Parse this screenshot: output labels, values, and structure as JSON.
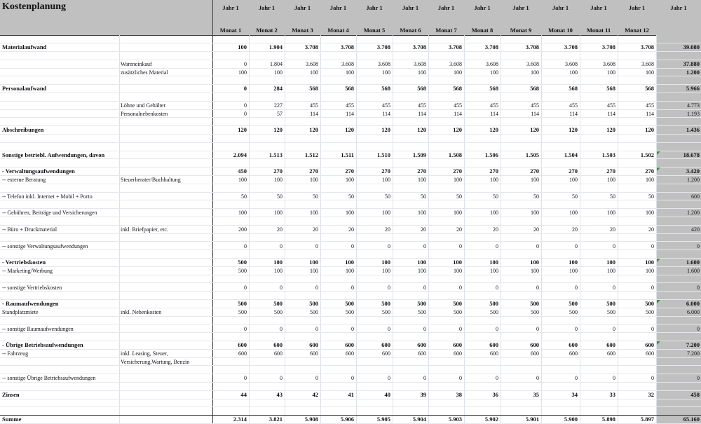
{
  "title": "Kostenplanung",
  "columns": [
    {
      "year": "Jahr 1",
      "month": "Monat 1"
    },
    {
      "year": "Jahr 1",
      "month": "Monat 2"
    },
    {
      "year": "Jahr 1",
      "month": "Monat 3"
    },
    {
      "year": "Jahr 1",
      "month": "Monat 4"
    },
    {
      "year": "Jahr 1",
      "month": "Monat 5"
    },
    {
      "year": "Jahr 1",
      "month": "Monat 6"
    },
    {
      "year": "Jahr 1",
      "month": "Monat 7"
    },
    {
      "year": "Jahr 1",
      "month": "Monat 8"
    },
    {
      "year": "Jahr 1",
      "month": "Monat 9"
    },
    {
      "year": "Jahr 1",
      "month": "Monat 10"
    },
    {
      "year": "Jahr 1",
      "month": "Monat 11"
    },
    {
      "year": "Jahr 1",
      "month": "Monat 12"
    }
  ],
  "total_header": {
    "year": "Jahr 1",
    "month": ""
  },
  "colors": {
    "header_bg": "#c0c0c0",
    "total_bg": "#c0c0c0",
    "comment_flag": "#2a9a2a"
  },
  "rows": [
    {},
    {
      "bold": true,
      "label": "Materialaufwand",
      "values": [
        "100",
        "1.904",
        "3.708",
        "3.708",
        "3.708",
        "3.708",
        "3.708",
        "3.708",
        "3.708",
        "3.708",
        "3.708",
        "3.708"
      ],
      "total": "39.080",
      "total_bold": true
    },
    {},
    {
      "note": "Wareneinkauf",
      "values": [
        "0",
        "1.804",
        "3.608",
        "3.608",
        "3.608",
        "3.608",
        "3.608",
        "3.608",
        "3.608",
        "3.608",
        "3.608",
        "3.608"
      ],
      "total": "37.880",
      "total_bold": true
    },
    {
      "note": "zusätzliches Material",
      "values": [
        "100",
        "100",
        "100",
        "100",
        "100",
        "100",
        "100",
        "100",
        "100",
        "100",
        "100",
        "100"
      ],
      "total": "1.200",
      "total_bold": true
    },
    {},
    {
      "bold": true,
      "label": "Personalaufwand",
      "values": [
        "0",
        "284",
        "568",
        "568",
        "568",
        "568",
        "568",
        "568",
        "568",
        "568",
        "568",
        "568"
      ],
      "total": "5.966",
      "total_bold": true
    },
    {},
    {
      "note": "Löhne und Gehälter",
      "values": [
        "0",
        "227",
        "455",
        "455",
        "455",
        "455",
        "455",
        "455",
        "455",
        "455",
        "455",
        "455"
      ],
      "total": "4.773"
    },
    {
      "note": "Personalnebenkosten",
      "values": [
        "0",
        "57",
        "114",
        "114",
        "114",
        "114",
        "114",
        "114",
        "114",
        "114",
        "114",
        "114"
      ],
      "total": "1.193"
    },
    {},
    {
      "bold": true,
      "label": "Abschreibungen",
      "values": [
        "120",
        "120",
        "120",
        "120",
        "120",
        "120",
        "120",
        "120",
        "120",
        "120",
        "120",
        "120"
      ],
      "total": "1.436",
      "total_bold": true
    },
    {},
    {},
    {
      "bold": true,
      "label": "Sonstige betriebl. Aufwendungen, davon",
      "values": [
        "2.094",
        "1.513",
        "1.512",
        "1.511",
        "1.510",
        "1.509",
        "1.508",
        "1.506",
        "1.505",
        "1.504",
        "1.503",
        "1.502"
      ],
      "total": "18.678",
      "total_bold": true,
      "flag": true
    },
    {},
    {
      "bold": true,
      "label": "- Verwaltungsaufwendungen",
      "values": [
        "450",
        "270",
        "270",
        "270",
        "270",
        "270",
        "270",
        "270",
        "270",
        "270",
        "270",
        "270"
      ],
      "total": "3.420",
      "total_bold": true,
      "flag": true
    },
    {
      "label": "-- externe Beratung",
      "note": "Steuerberater/Buchhaltung",
      "values": [
        "100",
        "100",
        "100",
        "100",
        "100",
        "100",
        "100",
        "100",
        "100",
        "100",
        "100",
        "100"
      ],
      "total": "1.200"
    },
    {},
    {
      "label": "-- Telefon inkl. Internet + Mobil + Porto",
      "values": [
        "50",
        "50",
        "50",
        "50",
        "50",
        "50",
        "50",
        "50",
        "50",
        "50",
        "50",
        "50"
      ],
      "total": "600"
    },
    {},
    {
      "label": "-- Gebühren, Beiträge und Versicherungen",
      "values": [
        "100",
        "100",
        "100",
        "100",
        "100",
        "100",
        "100",
        "100",
        "100",
        "100",
        "100",
        "100"
      ],
      "total": "1.200"
    },
    {},
    {
      "label": "-- Büro + Druckmaterial",
      "note": "inkl. Briefpapier, etc.",
      "values": [
        "200",
        "20",
        "20",
        "20",
        "20",
        "20",
        "20",
        "20",
        "20",
        "20",
        "20",
        "20"
      ],
      "total": "420"
    },
    {},
    {
      "label": "-- sonstige Verwaltungsaufwendungen",
      "values": [
        "0",
        "0",
        "0",
        "0",
        "0",
        "0",
        "0",
        "0",
        "0",
        "0",
        "0",
        "0"
      ],
      "total": "0"
    },
    {},
    {
      "bold": true,
      "label": "- Vertriebskosten",
      "values": [
        "500",
        "100",
        "100",
        "100",
        "100",
        "100",
        "100",
        "100",
        "100",
        "100",
        "100",
        "100"
      ],
      "total": "1.600",
      "total_bold": true,
      "flag": true
    },
    {
      "label": "-- Marketing/Werbung",
      "values": [
        "500",
        "100",
        "100",
        "100",
        "100",
        "100",
        "100",
        "100",
        "100",
        "100",
        "100",
        "100"
      ],
      "total": "1.600"
    },
    {},
    {
      "label": "-- sonstige Vertriebskosten",
      "values": [
        "0",
        "0",
        "0",
        "0",
        "0",
        "0",
        "0",
        "0",
        "0",
        "0",
        "0",
        "0"
      ],
      "total": "0"
    },
    {},
    {
      "bold": true,
      "label": "- Raumaufwendungen",
      "values": [
        "500",
        "500",
        "500",
        "500",
        "500",
        "500",
        "500",
        "500",
        "500",
        "500",
        "500",
        "500"
      ],
      "total": "6.000",
      "total_bold": true,
      "flag": true
    },
    {
      "label": "Standplatzmiete",
      "note": "inkl. Nebenkosten",
      "values": [
        "500",
        "500",
        "500",
        "500",
        "500",
        "500",
        "500",
        "500",
        "500",
        "500",
        "500",
        "500"
      ],
      "total": "6.000"
    },
    {},
    {
      "label": "-- sonstige Raumaufwendungen",
      "values": [
        "0",
        "0",
        "0",
        "0",
        "0",
        "0",
        "0",
        "0",
        "0",
        "0",
        "0",
        "0"
      ],
      "total": "0"
    },
    {},
    {
      "bold": true,
      "label": "- Übrige Betriebsaufwendungen",
      "values": [
        "600",
        "600",
        "600",
        "600",
        "600",
        "600",
        "600",
        "600",
        "600",
        "600",
        "600",
        "600"
      ],
      "total": "7.200",
      "total_bold": true,
      "flag": true
    },
    {
      "label": "-- Fahrzeug",
      "note": "inkl. Leasing, Steuer,",
      "values": [
        "600",
        "600",
        "600",
        "600",
        "600",
        "600",
        "600",
        "600",
        "600",
        "600",
        "600",
        "600"
      ],
      "total": "7.200"
    },
    {
      "note": "Versicherung,Wartung, Benzin"
    },
    {},
    {
      "label": "-- sonstige Übrige Betriebsaufwendungen",
      "values": [
        "0",
        "0",
        "0",
        "0",
        "0",
        "0",
        "0",
        "0",
        "0",
        "0",
        "0",
        "0"
      ],
      "total": "0"
    },
    {},
    {
      "bold": true,
      "label": "Zinsen",
      "values": [
        "44",
        "43",
        "42",
        "41",
        "40",
        "39",
        "38",
        "36",
        "35",
        "34",
        "33",
        "32"
      ],
      "total": "458",
      "total_bold": true
    },
    {},
    {},
    {
      "bold": true,
      "label": "Summe",
      "values": [
        "2.314",
        "3.821",
        "5.908",
        "5.906",
        "5.905",
        "5.904",
        "5.903",
        "5.902",
        "5.901",
        "5.900",
        "5.898",
        "5.897"
      ],
      "total": "65.160",
      "total_bold": true
    }
  ]
}
